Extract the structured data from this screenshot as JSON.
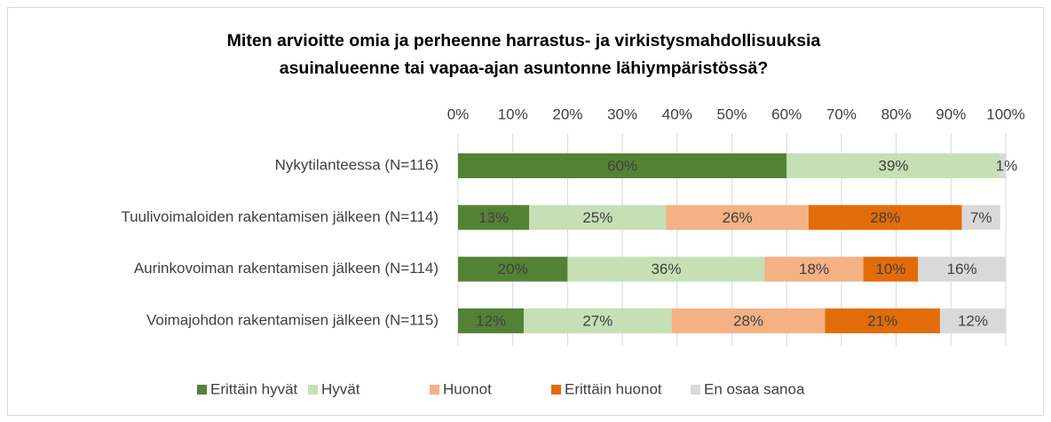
{
  "chart_data": {
    "type": "stacked-barh",
    "title": "Miten arvioitte omia ja perheenne harrastus- ja virkistysmahdollisuuksia",
    "subtitle": "asuinalueenne tai vapaa-ajan asuntonne lähiympäristössä?",
    "categories": [
      "Nykytilanteessa (N=116)",
      "Tuulivoimaloiden rakentamisen jälkeen (N=114)",
      "Aurinkovoiman rakentamisen jälkeen (N=114)",
      "Voimajohdon rakentamisen jälkeen (N=115)"
    ],
    "series": [
      {
        "name": "Erittäin hyvät",
        "color": "#548235",
        "values": [
          60,
          13,
          20,
          12
        ],
        "value_labels": [
          "60%",
          "13%",
          "20%",
          "12%"
        ]
      },
      {
        "name": "Hyvät",
        "color": "#c5e0b4",
        "values": [
          39,
          25,
          36,
          27
        ],
        "value_labels": [
          "39%",
          "25%",
          "36%",
          "27%"
        ]
      },
      {
        "name": "Huonot",
        "color": "#f4b183",
        "values": [
          null,
          26,
          18,
          28
        ],
        "value_labels": [
          null,
          "26%",
          "18%",
          "28%"
        ]
      },
      {
        "name": "Erittäin huonot",
        "color": "#e36c0a",
        "values": [
          null,
          28,
          10,
          21
        ],
        "value_labels": [
          null,
          "28%",
          "10%",
          "21%"
        ]
      },
      {
        "name": "En osaa sanoa",
        "color": "#d9d9d9",
        "values": [
          1,
          7,
          16,
          12
        ],
        "value_labels": [
          "1%",
          "7%",
          "16%",
          "12%"
        ]
      }
    ],
    "xlim": [
      0,
      100
    ],
    "xticks": [
      {
        "value": 0,
        "label": "0%"
      },
      {
        "value": 10,
        "label": "10%"
      },
      {
        "value": 20,
        "label": "20%"
      },
      {
        "value": 30,
        "label": "30%"
      },
      {
        "value": 40,
        "label": "40%"
      },
      {
        "value": 50,
        "label": "50%"
      },
      {
        "value": 60,
        "label": "60%"
      },
      {
        "value": 70,
        "label": "70%"
      },
      {
        "value": 80,
        "label": "80%"
      },
      {
        "value": 90,
        "label": "90%"
      },
      {
        "value": 100,
        "label": "100%"
      }
    ],
    "grid": true,
    "legend": "bottom"
  }
}
